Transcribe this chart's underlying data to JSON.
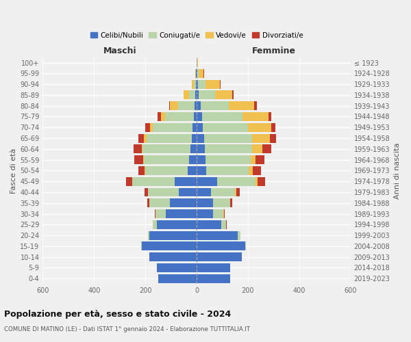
{
  "age_groups": [
    "0-4",
    "5-9",
    "10-14",
    "15-19",
    "20-24",
    "25-29",
    "30-34",
    "35-39",
    "40-44",
    "45-49",
    "50-54",
    "55-59",
    "60-64",
    "65-69",
    "70-74",
    "75-79",
    "80-84",
    "85-89",
    "90-94",
    "95-99",
    "100+"
  ],
  "birth_years": [
    "2019-2023",
    "2014-2018",
    "2009-2013",
    "2004-2008",
    "1999-2003",
    "1994-1998",
    "1989-1993",
    "1984-1988",
    "1979-1983",
    "1974-1978",
    "1969-1973",
    "1964-1968",
    "1959-1963",
    "1954-1958",
    "1949-1953",
    "1944-1948",
    "1939-1943",
    "1934-1938",
    "1929-1933",
    "1924-1928",
    "≤ 1923"
  ],
  "maschi": {
    "celibe": [
      150,
      155,
      185,
      215,
      185,
      155,
      120,
      105,
      70,
      85,
      35,
      30,
      25,
      20,
      15,
      12,
      8,
      5,
      3,
      2,
      1
    ],
    "coniugato": [
      0,
      0,
      0,
      2,
      5,
      15,
      40,
      80,
      120,
      165,
      165,
      175,
      185,
      175,
      155,
      110,
      65,
      25,
      8,
      2,
      0
    ],
    "vedovo": [
      0,
      0,
      0,
      0,
      0,
      0,
      0,
      0,
      1,
      2,
      2,
      3,
      5,
      10,
      12,
      18,
      30,
      20,
      8,
      2,
      0
    ],
    "divorziato": [
      0,
      0,
      0,
      0,
      0,
      2,
      2,
      8,
      12,
      22,
      25,
      35,
      30,
      22,
      18,
      12,
      5,
      2,
      1,
      0,
      0
    ]
  },
  "femmine": {
    "nubile": [
      130,
      130,
      175,
      190,
      160,
      95,
      65,
      65,
      55,
      80,
      38,
      35,
      32,
      30,
      25,
      20,
      15,
      8,
      5,
      2,
      1
    ],
    "coniugata": [
      0,
      0,
      0,
      3,
      10,
      20,
      40,
      65,
      95,
      150,
      165,
      175,
      185,
      185,
      175,
      160,
      110,
      65,
      30,
      5,
      1
    ],
    "vedova": [
      0,
      0,
      0,
      0,
      0,
      0,
      1,
      2,
      5,
      8,
      15,
      20,
      40,
      70,
      90,
      100,
      100,
      65,
      55,
      20,
      3
    ],
    "divorziata": [
      0,
      0,
      0,
      0,
      0,
      2,
      3,
      8,
      12,
      30,
      32,
      35,
      35,
      25,
      18,
      12,
      10,
      5,
      2,
      1,
      0
    ]
  },
  "colors": {
    "celibe": "#4472c4",
    "coniugato": "#b8d4a8",
    "vedovo": "#f0c050",
    "divorziato": "#c0392b"
  },
  "title": "Popolazione per età, sesso e stato civile - 2024",
  "subtitle": "COMUNE DI MATINO (LE) - Dati ISTAT 1° gennaio 2024 - Elaborazione TUTTITALIA.IT",
  "xlabel_left": "Maschi",
  "xlabel_right": "Femmine",
  "ylabel_left": "Fasce di età",
  "ylabel_right": "Anni di nascita",
  "xlim": 600,
  "legend_labels": [
    "Celibi/Nubili",
    "Coniugati/e",
    "Vedovi/e",
    "Divorziati/e"
  ],
  "background_color": "#f0f0f0"
}
